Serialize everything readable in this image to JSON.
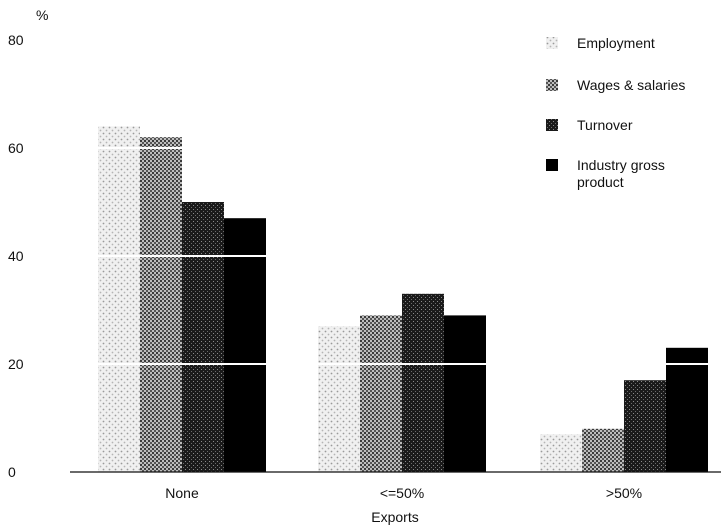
{
  "chart_data": {
    "type": "bar",
    "title": "",
    "ylabel": "%",
    "xlabel": "Exports",
    "categories": [
      "None",
      "<=50%",
      ">50%"
    ],
    "ylim": [
      0,
      80
    ],
    "yticks": [
      0,
      20,
      40,
      60,
      80
    ],
    "grid": false,
    "legend_position": "top-right",
    "series": [
      {
        "name": "Employment",
        "values": [
          64,
          27,
          7
        ],
        "pattern": "light-dots",
        "color": "#dcdcdc"
      },
      {
        "name": "Wages & salaries",
        "values": [
          62,
          29,
          8
        ],
        "pattern": "crosshatch",
        "color": "#9a9a9a"
      },
      {
        "name": "Turnover",
        "values": [
          50,
          33,
          17
        ],
        "pattern": "dense",
        "color": "#2a2a2a"
      },
      {
        "name": "Industry gross\nproduct",
        "values": [
          47,
          29,
          23
        ],
        "pattern": "solid",
        "color": "#000000"
      }
    ],
    "reference_lines_y": [
      20,
      40,
      60
    ]
  }
}
